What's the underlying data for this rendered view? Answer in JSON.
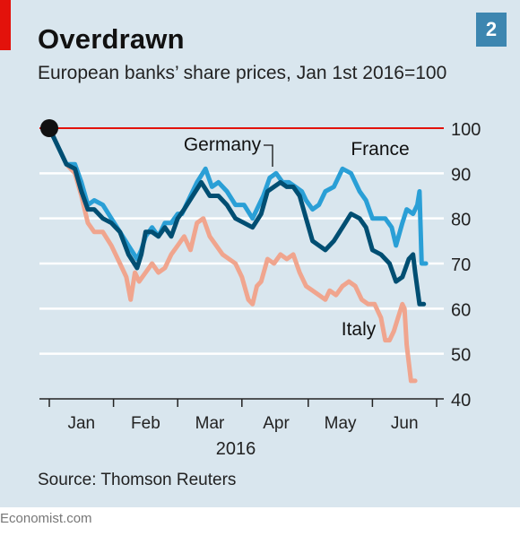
{
  "header": {
    "title": "Overdrawn",
    "subtitle": "European banks’ share prices, Jan 1st 2016=100",
    "chart_number": "2"
  },
  "footer": {
    "source": "Source: Thomson Reuters",
    "brand": "Economist.com"
  },
  "colors": {
    "accent": "#e3120b",
    "panel_background": "#d9e6ee",
    "badge": "#3d86b0",
    "gridline": "#ffffff",
    "baseline_100": "#e3120b"
  },
  "chart_data": {
    "type": "line",
    "title": "Overdrawn",
    "subtitle": "European banks’ share prices, Jan 1st 2016=100",
    "x_unit": "day of 2016",
    "x_range": [
      1,
      182
    ],
    "x_ticks": [
      {
        "label": "Jan",
        "day": 16
      },
      {
        "label": "Feb",
        "day": 46
      },
      {
        "label": "Mar",
        "day": 76
      },
      {
        "label": "Apr",
        "day": 107
      },
      {
        "label": "May",
        "day": 137
      },
      {
        "label": "Jun",
        "day": 167
      }
    ],
    "x_year_label": "2016",
    "y_ticks": [
      100,
      90,
      80,
      70,
      60,
      50,
      40
    ],
    "ylim": [
      40,
      100
    ],
    "reference_line": 100,
    "grid": true,
    "start_marker": {
      "day": 1,
      "value": 100
    },
    "series": [
      {
        "name": "France",
        "color": "#2a9fd6",
        "points": [
          [
            1,
            100
          ],
          [
            5,
            96
          ],
          [
            9,
            92
          ],
          [
            13,
            92
          ],
          [
            16,
            88
          ],
          [
            19,
            83
          ],
          [
            22,
            84
          ],
          [
            26,
            83
          ],
          [
            30,
            80
          ],
          [
            34,
            77
          ],
          [
            38,
            74
          ],
          [
            42,
            71
          ],
          [
            44,
            73
          ],
          [
            46,
            76
          ],
          [
            49,
            78
          ],
          [
            52,
            76
          ],
          [
            55,
            79
          ],
          [
            58,
            79
          ],
          [
            61,
            81
          ],
          [
            63,
            81
          ],
          [
            66,
            84
          ],
          [
            70,
            88
          ],
          [
            74,
            91
          ],
          [
            77,
            87
          ],
          [
            80,
            88
          ],
          [
            84,
            86
          ],
          [
            88,
            83
          ],
          [
            92,
            83
          ],
          [
            96,
            80
          ],
          [
            98,
            82
          ],
          [
            101,
            85
          ],
          [
            104,
            89
          ],
          [
            107,
            90
          ],
          [
            110,
            88
          ],
          [
            113,
            88
          ],
          [
            116,
            87
          ],
          [
            119,
            86
          ],
          [
            121,
            84
          ],
          [
            124,
            82
          ],
          [
            127,
            83
          ],
          [
            130,
            86
          ],
          [
            134,
            87
          ],
          [
            138,
            91
          ],
          [
            142,
            90
          ],
          [
            146,
            86
          ],
          [
            149,
            84
          ],
          [
            152,
            80
          ],
          [
            155,
            80
          ],
          [
            158,
            80
          ],
          [
            161,
            78
          ],
          [
            163,
            74
          ],
          [
            166,
            79
          ],
          [
            168,
            82
          ],
          [
            171,
            81
          ],
          [
            173,
            83
          ],
          [
            174,
            86
          ],
          [
            175,
            70
          ],
          [
            177,
            70
          ]
        ]
      },
      {
        "name": "Germany",
        "color": "#004e72",
        "points": [
          [
            1,
            100
          ],
          [
            5,
            96
          ],
          [
            9,
            92
          ],
          [
            13,
            91
          ],
          [
            16,
            86
          ],
          [
            19,
            82
          ],
          [
            22,
            82
          ],
          [
            26,
            80
          ],
          [
            30,
            79
          ],
          [
            34,
            77
          ],
          [
            38,
            72
          ],
          [
            42,
            69
          ],
          [
            44,
            72
          ],
          [
            46,
            77
          ],
          [
            49,
            77
          ],
          [
            52,
            76
          ],
          [
            55,
            78
          ],
          [
            58,
            76
          ],
          [
            61,
            80
          ],
          [
            64,
            82
          ],
          [
            68,
            85
          ],
          [
            72,
            88
          ],
          [
            76,
            85
          ],
          [
            80,
            85
          ],
          [
            84,
            83
          ],
          [
            88,
            80
          ],
          [
            92,
            79
          ],
          [
            96,
            78
          ],
          [
            100,
            81
          ],
          [
            103,
            86
          ],
          [
            106,
            87
          ],
          [
            109,
            88
          ],
          [
            112,
            87
          ],
          [
            115,
            87
          ],
          [
            118,
            85
          ],
          [
            121,
            80
          ],
          [
            124,
            75
          ],
          [
            127,
            74
          ],
          [
            130,
            73
          ],
          [
            134,
            75
          ],
          [
            138,
            78
          ],
          [
            142,
            81
          ],
          [
            146,
            80
          ],
          [
            149,
            78
          ],
          [
            152,
            73
          ],
          [
            156,
            72
          ],
          [
            160,
            70
          ],
          [
            163,
            66
          ],
          [
            166,
            67
          ],
          [
            169,
            71
          ],
          [
            171,
            72
          ],
          [
            172,
            68
          ],
          [
            174,
            61
          ],
          [
            176,
            61
          ]
        ]
      },
      {
        "name": "Italy",
        "color": "#f0a58e",
        "points": [
          [
            1,
            100
          ],
          [
            5,
            96
          ],
          [
            9,
            92
          ],
          [
            13,
            90
          ],
          [
            16,
            85
          ],
          [
            19,
            79
          ],
          [
            22,
            77
          ],
          [
            26,
            77
          ],
          [
            30,
            74
          ],
          [
            34,
            70
          ],
          [
            37,
            67
          ],
          [
            39,
            62
          ],
          [
            41,
            68
          ],
          [
            43,
            66
          ],
          [
            46,
            68
          ],
          [
            49,
            70
          ],
          [
            52,
            68
          ],
          [
            55,
            69
          ],
          [
            58,
            72
          ],
          [
            61,
            74
          ],
          [
            64,
            76
          ],
          [
            67,
            73
          ],
          [
            70,
            79
          ],
          [
            73,
            80
          ],
          [
            76,
            76
          ],
          [
            79,
            74
          ],
          [
            82,
            72
          ],
          [
            85,
            71
          ],
          [
            88,
            70
          ],
          [
            91,
            67
          ],
          [
            94,
            62
          ],
          [
            96,
            61
          ],
          [
            98,
            65
          ],
          [
            100,
            66
          ],
          [
            103,
            71
          ],
          [
            106,
            70
          ],
          [
            109,
            72
          ],
          [
            112,
            71
          ],
          [
            115,
            72
          ],
          [
            118,
            68
          ],
          [
            121,
            65
          ],
          [
            124,
            64
          ],
          [
            127,
            63
          ],
          [
            130,
            62
          ],
          [
            132,
            64
          ],
          [
            135,
            63
          ],
          [
            138,
            65
          ],
          [
            141,
            66
          ],
          [
            144,
            65
          ],
          [
            147,
            62
          ],
          [
            150,
            61
          ],
          [
            153,
            61
          ],
          [
            156,
            58
          ],
          [
            158,
            53
          ],
          [
            160,
            53
          ],
          [
            162,
            55
          ],
          [
            164,
            58
          ],
          [
            166,
            61
          ],
          [
            167,
            60
          ],
          [
            168,
            52
          ],
          [
            170,
            44
          ],
          [
            172,
            44
          ]
        ]
      }
    ],
    "annotations": [
      {
        "text": "Germany",
        "series": "Germany"
      },
      {
        "text": "France",
        "series": "France"
      },
      {
        "text": "Italy",
        "series": "Italy"
      }
    ]
  }
}
